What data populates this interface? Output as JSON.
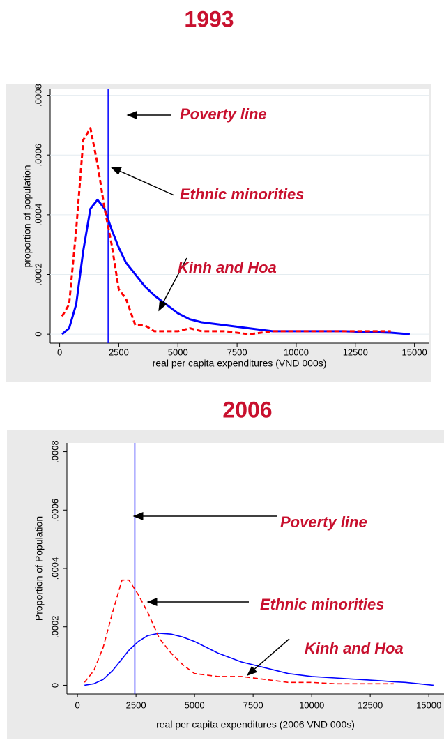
{
  "chart_data": [
    {
      "type": "line",
      "title": "1993",
      "x_label": "real per capita expenditures (VND 000s)",
      "y_label": "proportion of population",
      "xlim": [
        -400,
        15600
      ],
      "ylim": [
        -3e-05,
        0.00082
      ],
      "xticks": [
        0,
        2500,
        5000,
        7500,
        10000,
        12500,
        15000
      ],
      "yticks": [
        {
          "value": 0,
          "label": "0"
        },
        {
          "value": 0.0002,
          "label": ".0002"
        },
        {
          "value": 0.0004,
          "label": ".0004"
        },
        {
          "value": 0.0006,
          "label": ".0006"
        },
        {
          "value": 0.0008,
          "label": ".0008"
        }
      ],
      "grid": true,
      "x": [
        100,
        400,
        700,
        1000,
        1300,
        1600,
        1900,
        2200,
        2500,
        2800,
        3200,
        3600,
        4000,
        4500,
        5000,
        5500,
        6000,
        7000,
        8000,
        9000,
        10000,
        12000,
        14000,
        14800
      ],
      "series": [
        {
          "name": "Kinh and Hoa",
          "color": "#0000ff",
          "dashed": false,
          "values": [
            0,
            2e-05,
            0.0001,
            0.00028,
            0.00042,
            0.00045,
            0.00042,
            0.00035,
            0.00029,
            0.00024,
            0.0002,
            0.00016,
            0.00013,
            0.0001,
            7e-05,
            5e-05,
            4e-05,
            3e-05,
            2e-05,
            1e-05,
            1e-05,
            1e-05,
            5e-06,
            0
          ]
        },
        {
          "name": "Ethnic minorities",
          "color": "#ff0000",
          "dashed": true,
          "values": [
            6e-05,
            0.0001,
            0.00035,
            0.00065,
            0.00069,
            0.00057,
            0.00042,
            0.0003,
            0.00015,
            0.00012,
            3e-05,
            3e-05,
            1e-05,
            1e-05,
            1e-05,
            2e-05,
            1e-05,
            1e-05,
            0,
            1e-05,
            1e-05,
            1e-05,
            1e-05,
            null
          ]
        }
      ],
      "vline": {
        "label": "Poverty line",
        "x": 2050,
        "color": "#0000ff"
      }
    },
    {
      "type": "line",
      "title": "2006",
      "x_label": "real per capita expenditures (2006 VND 000s)",
      "y_label": "Proportion of Population",
      "xlim": [
        -450,
        15650
      ],
      "ylim": [
        -3e-05,
        0.00083
      ],
      "xticks": [
        0,
        2500,
        5000,
        7500,
        10000,
        12500,
        15000
      ],
      "yticks": [
        {
          "value": 0,
          "label": "0"
        },
        {
          "value": 0.0002,
          "label": ".0002"
        },
        {
          "value": 0.0004,
          "label": ".0004"
        },
        {
          "value": 0.0006,
          "label": ".0006"
        },
        {
          "value": 0.0008,
          "label": ".0008"
        }
      ],
      "grid": false,
      "x": [
        300,
        700,
        1100,
        1500,
        1900,
        2200,
        2600,
        3000,
        3500,
        4000,
        4500,
        5000,
        6000,
        7000,
        8000,
        9000,
        10000,
        11000,
        12000,
        13000,
        13500,
        14000,
        15200
      ],
      "series": [
        {
          "name": "Kinh and Hoa",
          "color": "#0000ff",
          "dashed": false,
          "values": [
            0,
            5e-06,
            2e-05,
            5e-05,
            9e-05,
            0.00012,
            0.00015,
            0.00017,
            0.000178,
            0.000175,
            0.000165,
            0.00015,
            0.00011,
            8e-05,
            6e-05,
            4e-05,
            3e-05,
            2.5e-05,
            2e-05,
            1.5e-05,
            1.2e-05,
            1e-05,
            0
          ]
        },
        {
          "name": "Ethnic minorities",
          "color": "#ff0000",
          "dashed": true,
          "values": [
            1e-05,
            5e-05,
            0.00013,
            0.00025,
            0.00036,
            0.00036,
            0.00031,
            0.00025,
            0.00016,
            0.00011,
            7e-05,
            4e-05,
            3e-05,
            3e-05,
            2e-05,
            1e-05,
            1e-05,
            5e-06,
            5e-06,
            5e-06,
            5e-06,
            null,
            null
          ]
        }
      ],
      "vline": {
        "label": "Poverty line",
        "x": 2450,
        "color": "#0000ff"
      }
    }
  ]
}
